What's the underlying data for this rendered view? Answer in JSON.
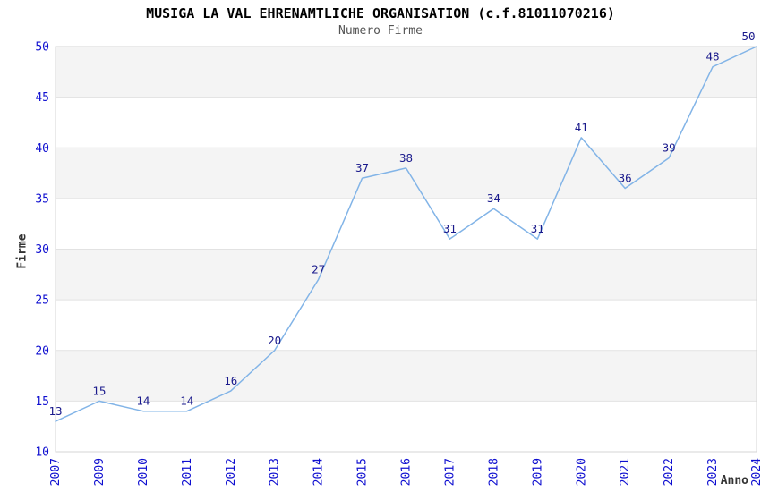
{
  "chart": {
    "title": "MUSIGA LA VAL EHRENAMTLICHE ORGANISATION (c.f.81011070216)",
    "subtitle": "Numero Firme",
    "xlabel": "Anno",
    "ylabel": "Firme"
  },
  "chart_data": {
    "type": "line",
    "title": "MUSIGA LA VAL EHRENAMTLICHE ORGANISATION (c.f.81011070216)",
    "subtitle": "Numero Firme",
    "xlabel": "Anno",
    "ylabel": "Firme",
    "categories": [
      "2007",
      "2009",
      "2010",
      "2011",
      "2012",
      "2013",
      "2014",
      "2015",
      "2016",
      "2017",
      "2018",
      "2019",
      "2020",
      "2021",
      "2022",
      "2023",
      "2024"
    ],
    "values": [
      13,
      15,
      14,
      14,
      16,
      20,
      27,
      37,
      38,
      31,
      34,
      31,
      41,
      36,
      39,
      48,
      50
    ],
    "ylim": [
      10,
      50
    ],
    "yticks": [
      10,
      15,
      20,
      25,
      30,
      35,
      40,
      45,
      50
    ],
    "grid": "horizontal-bands-alternating",
    "legend": "none",
    "data_labels": "on",
    "colors": {
      "line": "#82b4e7",
      "data_label": "#1a1a8c",
      "tick_label": "#0f0fd0",
      "band_fill": "#f4f4f4",
      "grid_line": "#e2e2e2",
      "plot_border": "#d4d4d4",
      "title": "#000000",
      "subtitle": "#555555",
      "axis_title": "#333333",
      "background": "#ffffff"
    }
  }
}
